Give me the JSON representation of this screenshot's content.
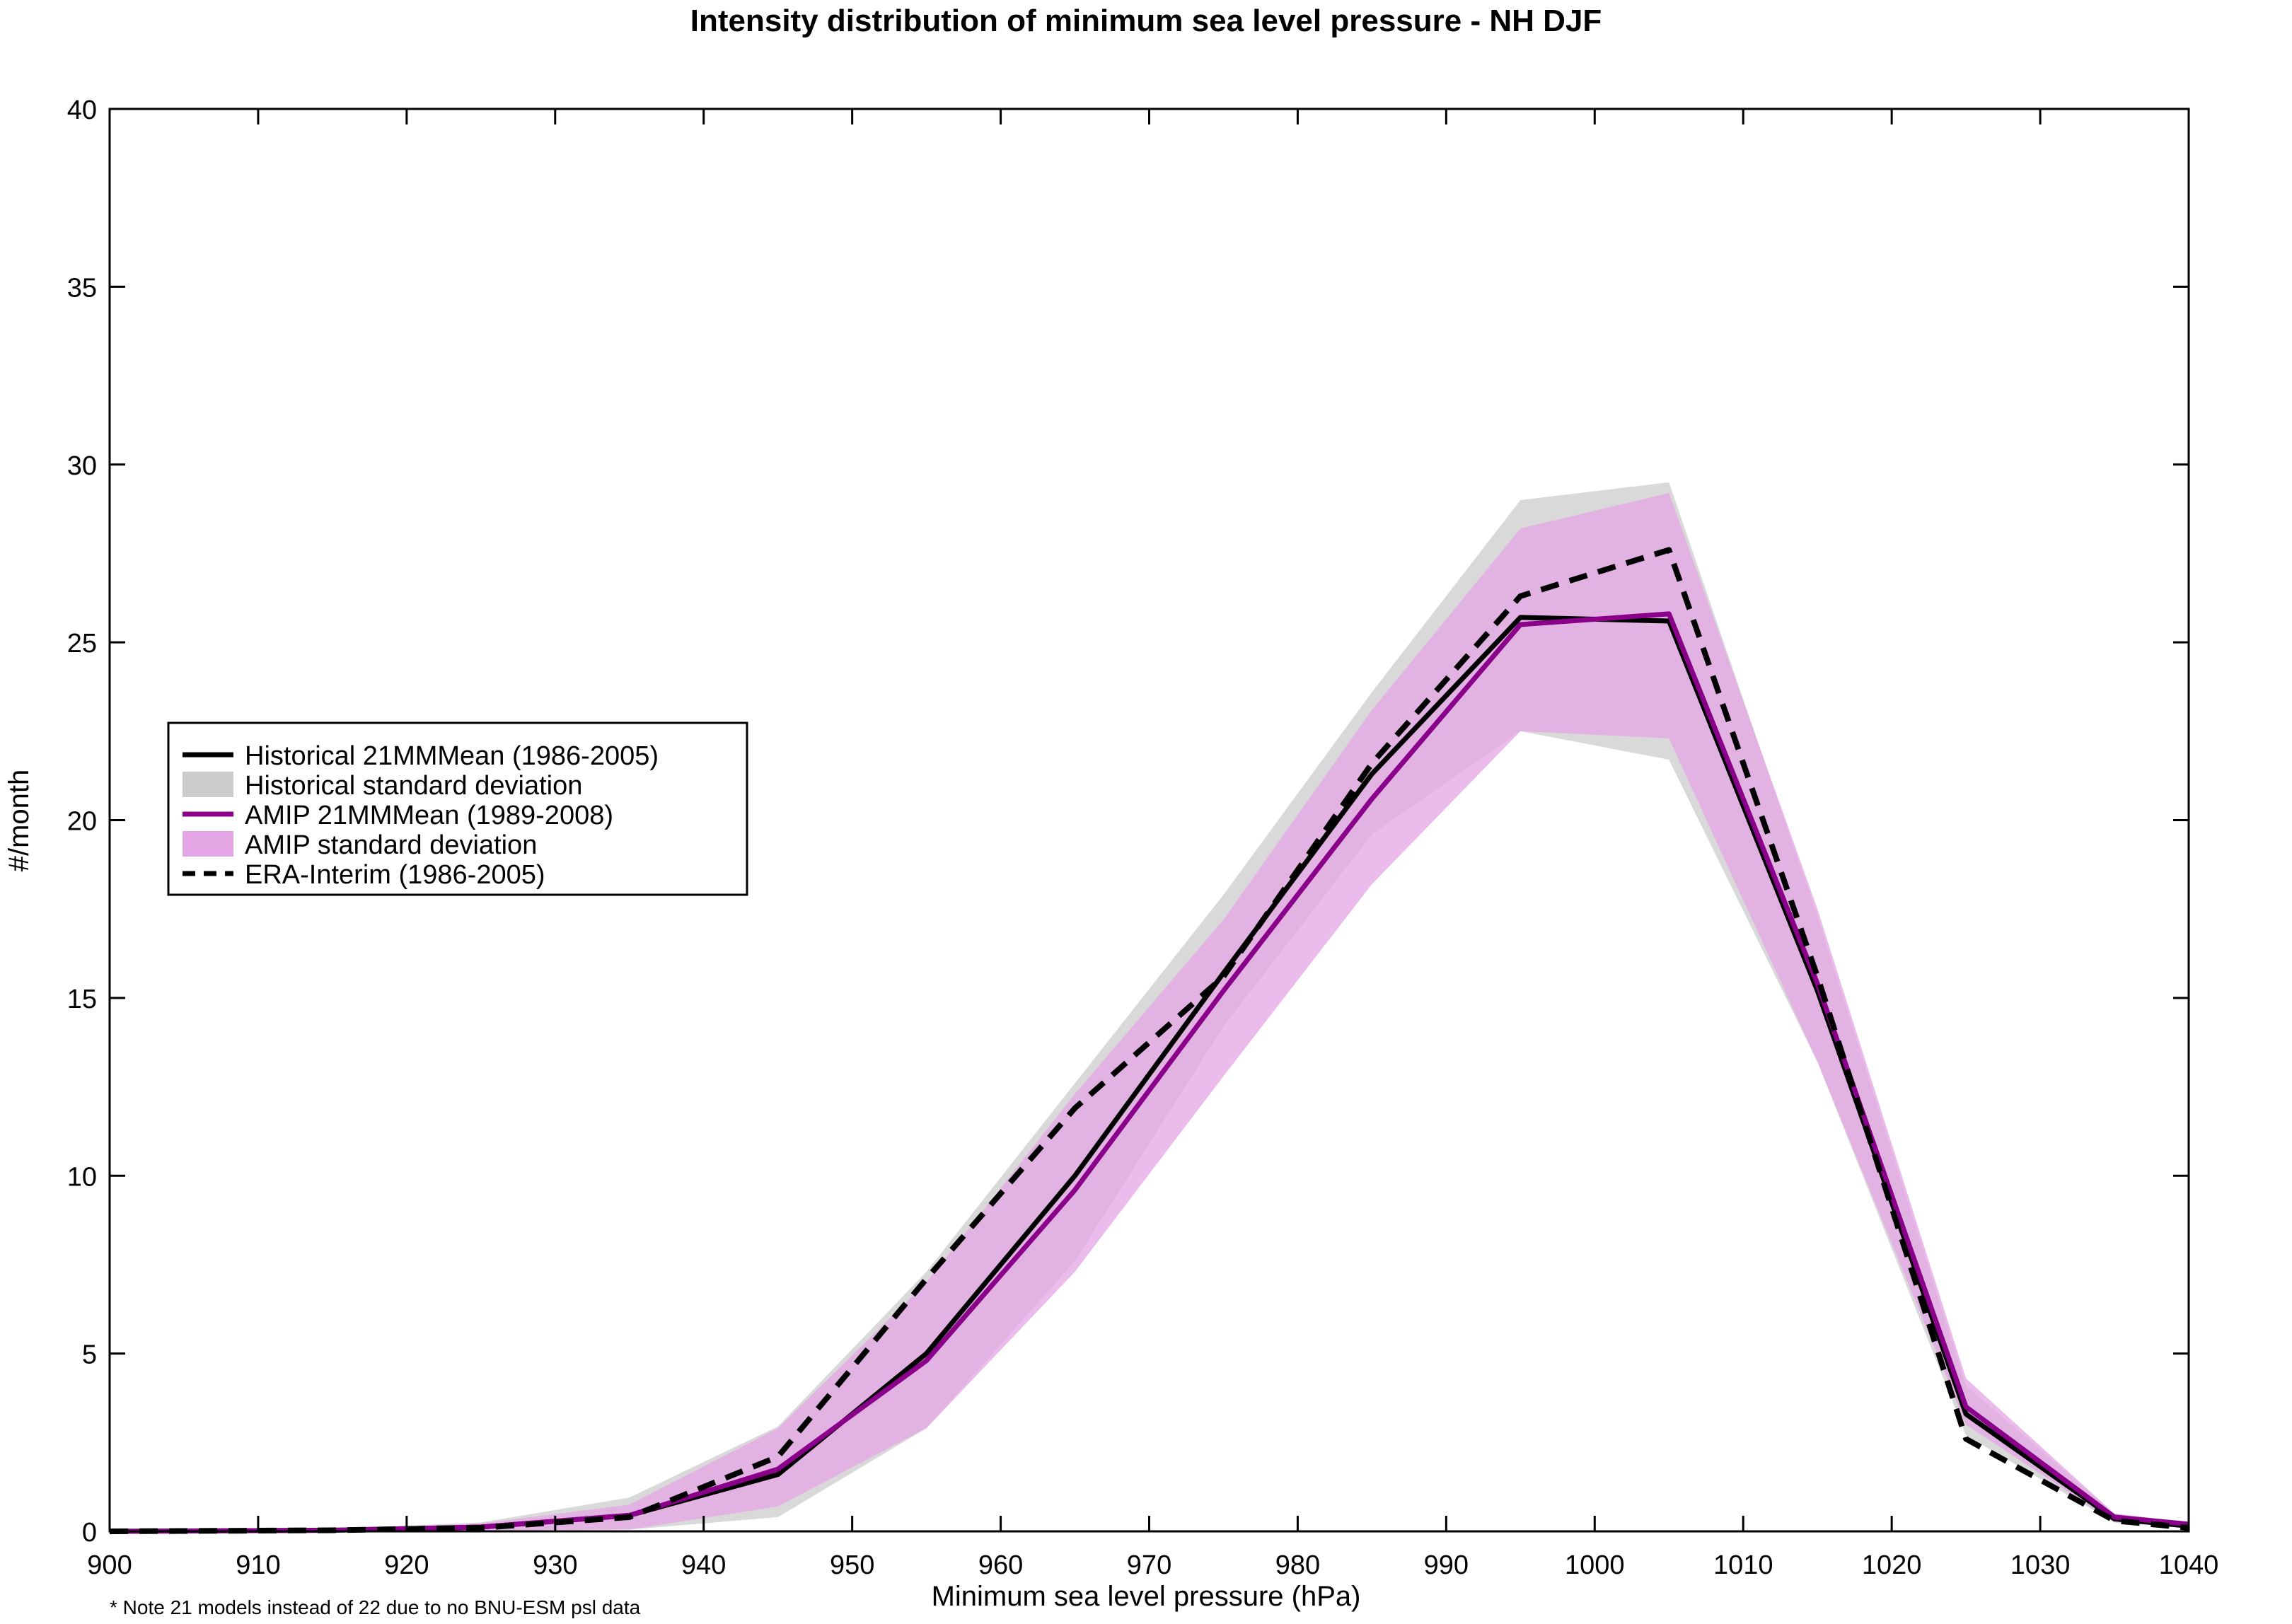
{
  "chart_data": {
    "type": "line",
    "title": "Intensity distribution of minimum sea level pressure - NH DJF",
    "xlabel": "Minimum sea level pressure (hPa)",
    "ylabel": "#/month",
    "xlim": [
      900,
      1040
    ],
    "ylim": [
      0,
      40
    ],
    "x_ticks": [
      900,
      910,
      920,
      930,
      940,
      950,
      960,
      970,
      980,
      990,
      1000,
      1010,
      1020,
      1030,
      1040
    ],
    "y_ticks": [
      0,
      5,
      10,
      15,
      20,
      25,
      30,
      35,
      40
    ],
    "x": [
      900,
      905,
      915,
      925,
      935,
      945,
      955,
      965,
      975,
      985,
      995,
      1005,
      1015,
      1025,
      1035,
      1040
    ],
    "grid": false,
    "legend_position": "center-left",
    "footnote": "* Note 21 models instead of 22 due to no BNU-ESM psl data",
    "bands": [
      {
        "name": "Historical standard deviation",
        "color": "#cccccc",
        "lower": [
          0,
          0,
          0,
          0.03,
          0.05,
          0.4,
          2.9,
          7.6,
          14.2,
          19.6,
          22.5,
          21.7,
          13.2,
          2.7,
          0.25,
          0.1
        ],
        "upper": [
          0.02,
          0.02,
          0.07,
          0.25,
          0.95,
          2.95,
          7.3,
          12.6,
          17.9,
          23.6,
          29.0,
          29.5,
          17.3,
          4.1,
          0.5,
          0.25
        ]
      },
      {
        "name": "AMIP standard deviation",
        "color": "#e4a5e4",
        "lower": [
          0,
          0,
          0,
          0.03,
          0.05,
          0.7,
          2.9,
          7.3,
          12.8,
          18.2,
          22.5,
          22.3,
          13.2,
          3.0,
          0.25,
          0.1
        ],
        "upper": [
          0.02,
          0.02,
          0.06,
          0.22,
          0.75,
          2.9,
          7.0,
          12.3,
          17.2,
          23.1,
          28.2,
          29.2,
          17.5,
          4.3,
          0.5,
          0.25
        ]
      }
    ],
    "series": [
      {
        "name": "Historical 21MMMean (1986-2005)",
        "color": "#000000",
        "dash": "solid",
        "values": [
          0.0,
          0.01,
          0.03,
          0.12,
          0.45,
          1.6,
          5.0,
          10.0,
          15.7,
          21.3,
          25.7,
          25.6,
          15.2,
          3.3,
          0.35,
          0.15
        ]
      },
      {
        "name": "AMIP 21MMMean (1989-2008)",
        "color": "#8b008b",
        "dash": "solid",
        "values": [
          0.0,
          0.01,
          0.03,
          0.12,
          0.45,
          1.75,
          4.8,
          9.6,
          15.2,
          20.6,
          25.5,
          25.8,
          15.4,
          3.5,
          0.4,
          0.2
        ]
      },
      {
        "name": "ERA-Interim (1986-2005)",
        "color": "#000000",
        "dash": "dashed",
        "values": [
          0.0,
          0.01,
          0.03,
          0.1,
          0.4,
          2.1,
          7.1,
          11.9,
          15.6,
          21.6,
          26.3,
          27.6,
          15.6,
          2.6,
          0.3,
          0.1
        ]
      }
    ],
    "legend": [
      {
        "label": "Historical 21MMMean (1986-2005)",
        "kind": "line",
        "color": "#000000",
        "dash": "solid"
      },
      {
        "label": "Historical standard deviation",
        "kind": "band",
        "color": "#cccccc"
      },
      {
        "label": "AMIP 21MMMean (1989-2008)",
        "kind": "line",
        "color": "#8b008b",
        "dash": "solid"
      },
      {
        "label": "AMIP standard deviation",
        "kind": "band",
        "color": "#e4a5e4"
      },
      {
        "label": "ERA-Interim (1986-2005)",
        "kind": "line",
        "color": "#000000",
        "dash": "dashed"
      }
    ]
  }
}
